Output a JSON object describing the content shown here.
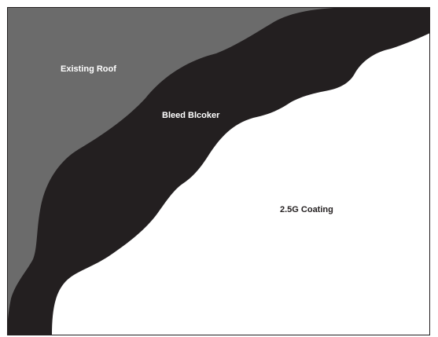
{
  "diagram": {
    "labels": {
      "existing_roof": "Existing Roof",
      "bleed_blocker": "Bleed Blcoker",
      "coating": "2.5G Coating"
    },
    "colors": {
      "existing_roof": "#6b6b6b",
      "bleed_blocker": "#231f20",
      "coating": "#ffffff",
      "frame": "#231f20",
      "label_light": "#ffffff",
      "label_dark": "#231f20"
    }
  }
}
